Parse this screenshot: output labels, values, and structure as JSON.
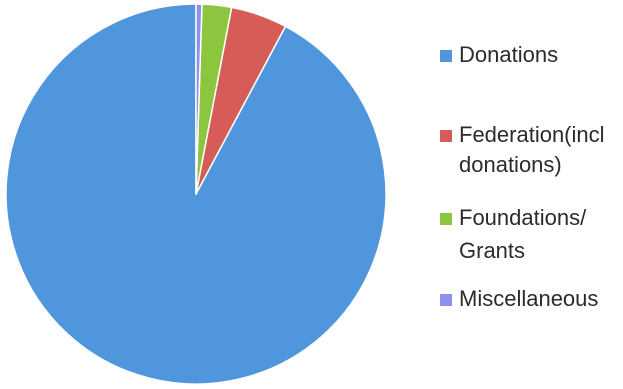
{
  "chart_data": {
    "type": "pie",
    "title": "",
    "categories": [
      "Donations",
      "Federation(incl donations)",
      "Foundations/ Grants",
      "Miscellaneous"
    ],
    "values": [
      92.2,
      4.8,
      2.5,
      0.5
    ],
    "value_unit": "percent",
    "colors": [
      "#4f96dc",
      "#d65c57",
      "#8cc63f",
      "#8f8ff0"
    ],
    "start_angle_deg": 0,
    "direction": "counterclockwise",
    "legend_position": "right"
  },
  "legend": {
    "items": [
      {
        "lines": [
          "Donations"
        ],
        "color": "#4f96dc"
      },
      {
        "lines": [
          "Federation(incl",
          "donations)"
        ],
        "color": "#d65c57"
      },
      {
        "lines": [
          "Foundations/",
          "Grants"
        ],
        "color": "#8cc63f"
      },
      {
        "lines": [
          "Miscellaneous"
        ],
        "color": "#8f8ff0"
      }
    ]
  }
}
